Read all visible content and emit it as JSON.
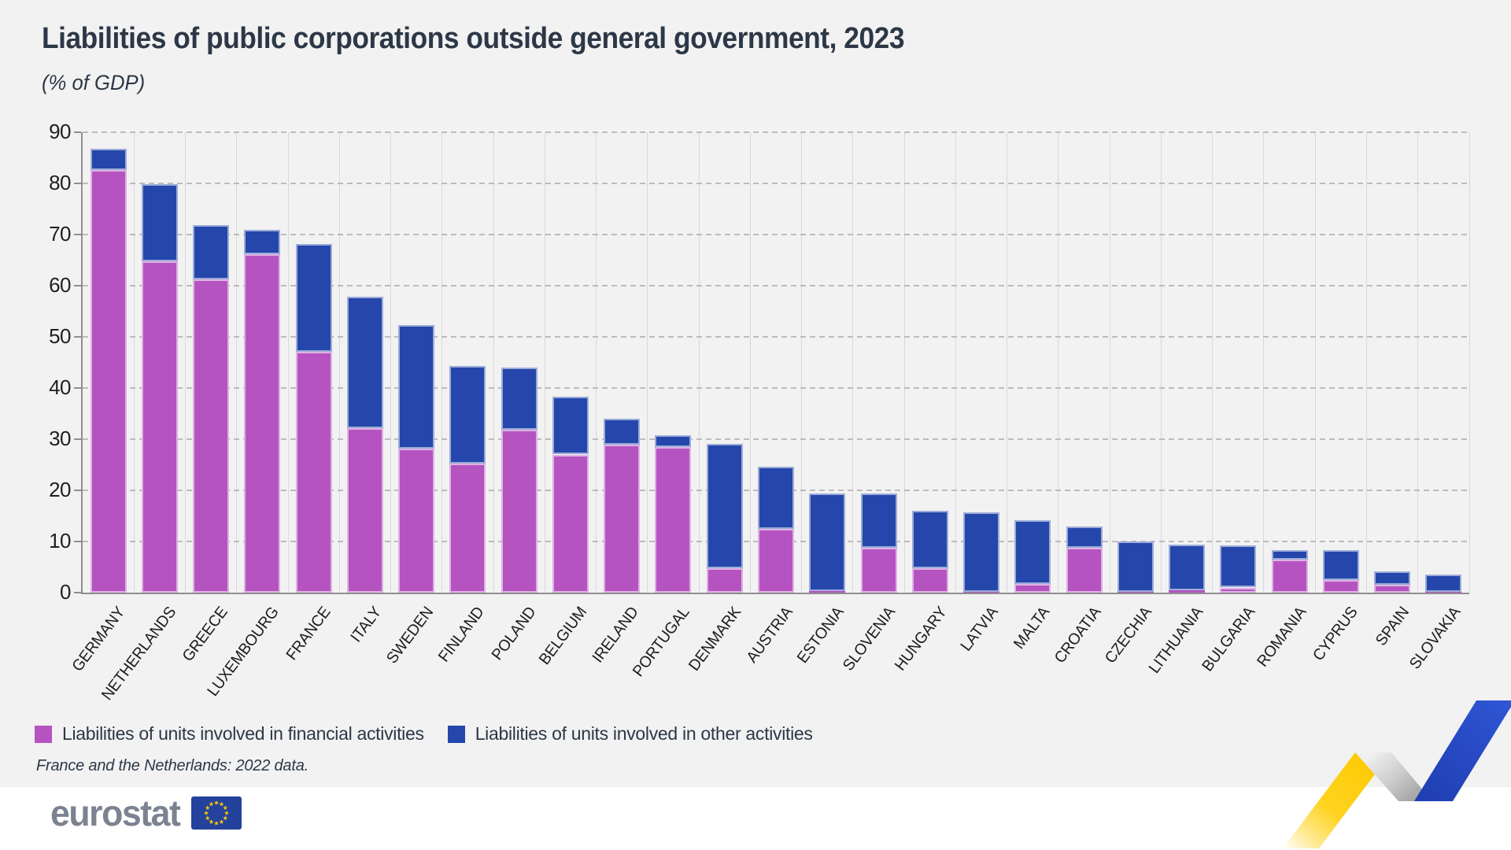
{
  "page": {
    "title": "Liabilities of public corporations outside general government, 2023",
    "subtitle": "(% of GDP)",
    "footnote": "France and the Netherlands: 2022 data.",
    "brand": "eurostat"
  },
  "colors": {
    "financial": "#b554c1",
    "other": "#2547ab",
    "title_text": "#2c3847",
    "background": "#f2f2f2",
    "footer_background": "#ffffff",
    "eu_flag_blue": "#24419b",
    "eu_star_yellow": "#ffcc00",
    "ribbon_yellow": "#fdc900",
    "ribbon_gray": "#c9c9c9",
    "ribbon_blue": "#2f55d4"
  },
  "chart_data": {
    "type": "bar",
    "stacked": true,
    "title": "Liabilities of public corporations outside general government, 2023",
    "subtitle": "(% of GDP)",
    "xlabel": "",
    "ylabel": "% of GDP",
    "ylim": [
      0,
      90
    ],
    "yticks": [
      0,
      10,
      20,
      30,
      40,
      50,
      60,
      70,
      80,
      90
    ],
    "grid": true,
    "legend_position": "bottom-left",
    "categories": [
      "GERMANY",
      "NETHERLANDS",
      "GREECE",
      "LUXEMBOURG",
      "FRANCE",
      "ITALY",
      "SWEDEN",
      "FINLAND",
      "POLAND",
      "BELGIUM",
      "IRELAND",
      "PORTUGAL",
      "DENMARK",
      "AUSTRIA",
      "ESTONIA",
      "SLOVENIA",
      "HUNGARY",
      "LATVIA",
      "MALTA",
      "CROATIA",
      "CZECHIA",
      "LITHUANIA",
      "BULGARIA",
      "ROMANIA",
      "CYPRUS",
      "SPAIN",
      "SLOVAKIA"
    ],
    "series": [
      {
        "name": "Liabilities of units involved in financial activities",
        "color": "#b554c1",
        "values": [
          82.6,
          64.8,
          61.3,
          66.1,
          47.1,
          32.2,
          28.1,
          25.2,
          31.8,
          27.0,
          28.9,
          28.4,
          4.7,
          12.4,
          0.3,
          8.8,
          4.8,
          0.2,
          1.7,
          8.7,
          0.2,
          0.4,
          1.0,
          6.4,
          2.4,
          1.6,
          0.1
        ]
      },
      {
        "name": "Liabilities of units involved in other activities",
        "color": "#2547ab",
        "values": [
          4.2,
          15.1,
          10.6,
          4.9,
          21.0,
          25.6,
          24.2,
          19.1,
          12.2,
          11.3,
          5.1,
          2.3,
          24.4,
          12.2,
          19.1,
          10.6,
          11.2,
          15.5,
          12.5,
          4.3,
          9.8,
          9.0,
          8.2,
          1.9,
          5.9,
          2.5,
          3.5
        ]
      }
    ]
  }
}
